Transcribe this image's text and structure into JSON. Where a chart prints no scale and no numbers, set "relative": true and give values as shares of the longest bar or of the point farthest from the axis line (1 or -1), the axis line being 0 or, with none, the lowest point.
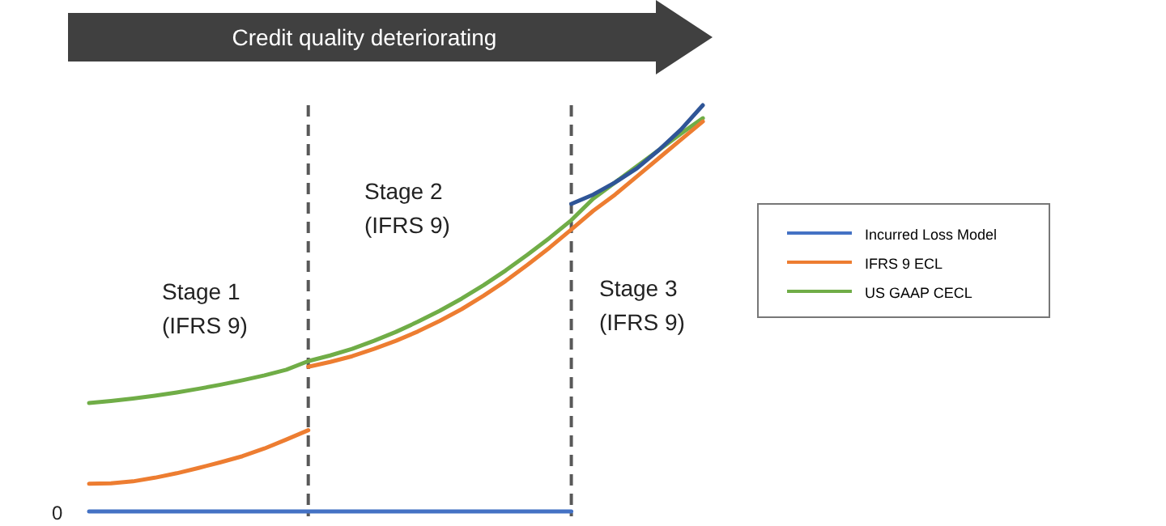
{
  "chart_data": {
    "type": "line",
    "title": "Credit quality deteriorating",
    "relative": true,
    "legend": "right",
    "line_style": "solid",
    "categories": [
      null,
      null,
      null,
      null,
      null,
      null,
      null,
      null,
      null,
      null,
      null,
      null,
      null,
      null,
      null,
      null,
      null,
      null,
      null,
      null,
      null,
      null,
      null,
      null,
      null,
      null,
      null,
      null,
      null
    ],
    "series": [
      {
        "name": "Incurred Loss Model",
        "color": "#4472c4",
        "values": [
          0,
          0,
          0,
          0,
          0,
          0,
          0,
          0,
          0,
          0,
          0,
          0,
          0,
          0,
          0,
          0,
          0,
          0,
          0,
          0,
          0,
          0,
          0,
          null,
          null,
          null,
          null,
          null,
          null
        ]
      },
      {
        "name": "IFRS 9 ECL",
        "color": "#ed7d31",
        "values": [
          0.068,
          0.069,
          0.074,
          0.083,
          0.094,
          0.107,
          0.121,
          0.136,
          0.155,
          0.177,
          0.2,
          null,
          null,
          null,
          null,
          null,
          null,
          null,
          null,
          null,
          null,
          null,
          null,
          null,
          null,
          null,
          null,
          null,
          null
        ]
      },
      {
        "name": "US GAAP CECL",
        "color": "#70ad47",
        "values": [
          0.267,
          0.272,
          0.278,
          0.285,
          0.293,
          0.302,
          0.312,
          0.323,
          0.335,
          0.349,
          0.37,
          0.384,
          0.4,
          0.42,
          0.442,
          0.467,
          0.494,
          0.524,
          0.557,
          0.593,
          0.632,
          0.673,
          0.717,
          0.77,
          0.81,
          0.85,
          0.89,
          0.93,
          0.968
        ]
      },
      {
        "color": "#2f5597",
        "values": [
          null,
          null,
          null,
          null,
          null,
          null,
          null,
          null,
          null,
          null,
          null,
          null,
          null,
          null,
          null,
          null,
          null,
          null,
          null,
          null,
          null,
          null,
          0.757,
          0.78,
          0.81,
          0.845,
          0.89,
          0.94,
          1
        ]
      },
      {
        "color": "#ed7d31",
        "values": [
          null,
          null,
          null,
          null,
          null,
          null,
          null,
          null,
          null,
          null,
          0.356,
          0.368,
          0.382,
          0.4,
          0.42,
          0.443,
          0.469,
          0.498,
          0.531,
          0.567,
          0.607,
          0.649,
          0.694,
          0.74,
          0.78,
          0.825,
          0.87,
          0.915,
          0.96
        ]
      }
    ],
    "annotations": [
      "Stage 1\n(IFRS 9)",
      "Stage 2\n(IFRS 9)",
      "Stage 3\n(IFRS 9)",
      "0"
    ]
  }
}
